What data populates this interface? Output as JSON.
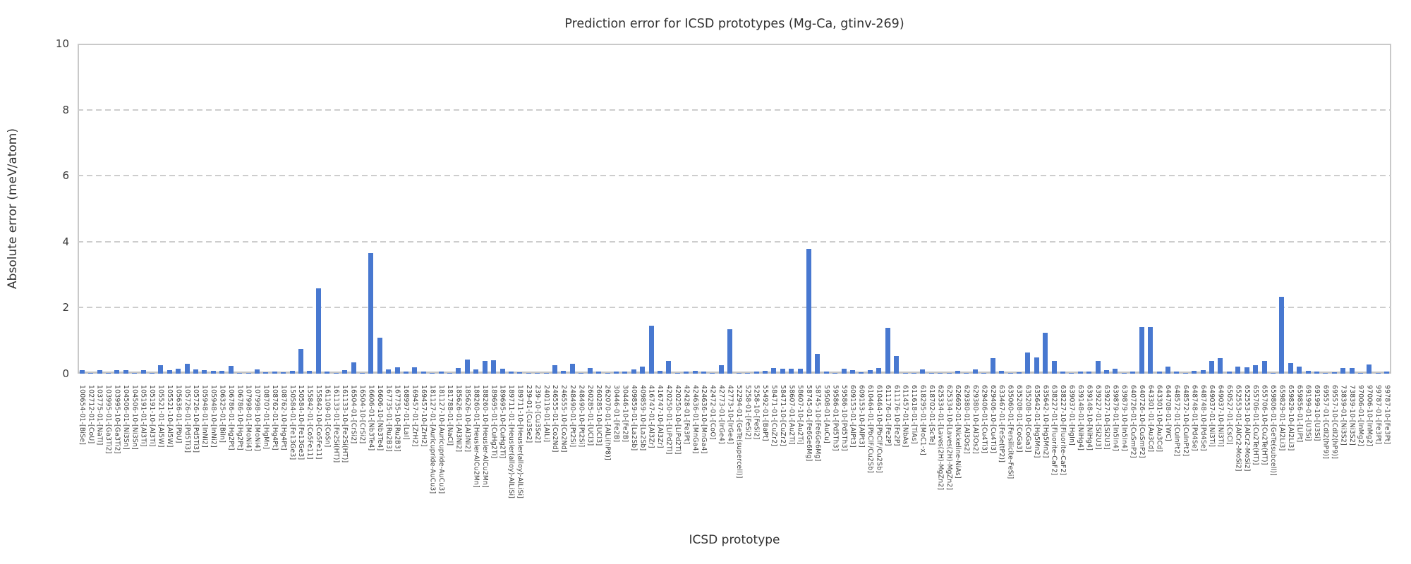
{
  "title": "Prediction error for ICSD prototypes (Mg-Ca, gtinv-269)",
  "colors": {
    "bar": "#4878D0",
    "grid": "#cdcdcd",
    "spine": "#c9c9c9",
    "text": "#333333"
  },
  "chart_data": {
    "type": "bar",
    "title": "Prediction error for ICSD prototypes (Mg-Ca, gtinv-269)",
    "xlabel": "ICSD prototype",
    "ylabel": "Absolute error (meV/atom)",
    "ylim": [
      0,
      10
    ],
    "yticks": [
      0,
      2,
      4,
      6,
      8,
      10
    ],
    "grid": "horizontal-dashed",
    "legend": "none",
    "bar_color": "#4878D0",
    "categories": [
      "100654-01-[BiSe]",
      "102712-01-[CoU]",
      "103775-01-[NaTl]",
      "103995-01-[Ga3Ti2]",
      "103995-10-[Ga3Ti2]",
      "104506-01-[Ni3Sn]",
      "104506-10-[Ni3Sn]",
      "105191-01-[Al3Ti]",
      "105191-10-[Al3Ti]",
      "105521-01-[Al5W]",
      "105521-10-[Al5W]",
      "105636-01-[PbU]",
      "105726-01-[Pd5Ti3]",
      "105726-10-[Pd5Ti3]",
      "105948-01-[InNi2]",
      "105948-10-[InNi2]",
      "106325-01-[BiIn]",
      "106786-01-[Hg2Pt]",
      "106786-10-[Hg2Pt]",
      "107998-01-[MoNi4]",
      "107998-10-[MoNi4]",
      "108707-01-[HgMn]",
      "108762-01-[Hg4Pt]",
      "108762-10-[Hg4Pt]",
      "150584-01-[Fe13Ge3]",
      "150584-10-[Fe13Ge3]",
      "155842-01-[Co5Fe11]",
      "155842-10-[Co5Fe11]",
      "161109-01-[CoSn]",
      "161133-01-[Fe2Si(HT)]",
      "161133-10-[Fe2Si(HT)]",
      "16504-01-[CrSi2]",
      "16504-10-[CrSi2]",
      "16606-01-[Nb3Te4]",
      "16606-10-[Nb3Te4]",
      "167735-01-[Ru2B3]",
      "167735-10-[Ru2B3]",
      "168997-01-[LaI]",
      "169457-01-[ZrH2]",
      "169457-10-[ZrH2]",
      "181127-01-[Auricupride-AuCu3]",
      "181127-10-[Auricupride-AuCu3]",
      "181788-01-[NaCl]",
      "185626-01-[Al3Ni2]",
      "185626-10-[Al3Ni2]",
      "188260-01-[Heusler-AlCu2Mn]",
      "188260-10-[Heusler-AlCu2Mn]",
      "189695-01-[CuHg2Ti]",
      "189695-10-[CuHg2Ti]",
      "189711-01-[Heusler(alloy)-AlLiSi]",
      "189711-10-[Heusler(alloy)-AlLiSi]",
      "239-01-[Cu3Se2]",
      "239-10-[Cu3Se2]",
      "240119-01-[AlLi]",
      "246555-01-[Co2Nd]",
      "246555-10-[Co2Nd]",
      "248490-01-[Pt2Si]",
      "248490-10-[Pt2Si]",
      "260285-01-[UCl3]",
      "260285-10-[UCl3]",
      "262070-01-[AlLi(hP8)]",
      "30446-01-[Fe2B]",
      "30446-10-[Fe2B]",
      "409859-01-[La2Sb]",
      "409859-10-[La2Sb]",
      "416747-01-[Al3Zr]",
      "416747-10-[Al3Zr]",
      "420250-01-[LiPd2Tl]",
      "420250-10-[LiPd2Tl]",
      "42428-01-[Fe3Pt]",
      "424636-01-[MnGa4]",
      "424636-10-[MnGa4]",
      "42472-01-[CoO]",
      "42773-01-[IrGe4]",
      "42773-10-[IrGe4]",
      "52294-01-[GeTe(supercell)]",
      "5258-01-[FeSi2]",
      "5258-10-[FeSi2]",
      "55492-01-[BaPt]",
      "58471-01-[CuZr2]",
      "58471-10-[CuZr2]",
      "58607-01-[Au2Ti]",
      "58607-10-[Au2Ti]",
      "58745-01-[Fe6Ge6Mg]",
      "58745-10-[Fe6Ge6Mg]",
      "59508-01-[AuCu]",
      "59586-01-[Pd5Th3]",
      "59586-10-[Pd5Th3]",
      "609153-01-[AlPt3]",
      "609153-10-[AlPt3]",
      "610464-01-[PbClF/Cu2Sb]",
      "610464-10-[PbClF/Cu2Sb]",
      "611176-01-[Fe2P]",
      "611176-10-[Fe2P]",
      "611457-01-[NbAs]",
      "611618-01-[TiAs]",
      "618295-01-[MoC1-x]",
      "618702-01-[ScTe]",
      "625334-01-[Laves(2H)-MgZn2]",
      "625334-10-[Laves(2H)-MgZn2]",
      "626692-01-[Nickeline-NiAs]",
      "629380-01-[Al3Os2]",
      "629380-10-[Al3Os2]",
      "629406-01-[Cu4Ti3]",
      "629406-10-[Cu4Ti3]",
      "633467-01-[FeSe(tP2)]",
      "635060-01-[Fersilicite-FeSi]",
      "635208-01-[CoGa3]",
      "635208-10-[CoGa3]",
      "635642-01-[Hg5Mn2]",
      "635642-10-[Hg5Mn2]",
      "638227-01-[Fluorite-CaF2]",
      "638227-10-[Fluorite-CaF2]",
      "639037-01-[HgIn]",
      "639148-01-[NiHg4]",
      "639148-10-[NiHg4]",
      "639227-01-[Si2U3]",
      "639227-10-[Si2U3]",
      "639879-01-[In5In4]",
      "639879-10-[In5In4]",
      "640726-01-[CuSmP2]",
      "640726-10-[CuSmP2]",
      "643301-01-[Au3Cd]",
      "643301-10-[Au3Cd]",
      "644708-01-[WC]",
      "648572-01-[CuInPt2]",
      "648572-10-[CuInPt2]",
      "648748-01-[Pd4Se]",
      "648748-10-[Pd4Se]",
      "649037-01-[Ni3Ti]",
      "649037-10-[Ni3Ti]",
      "650527-01-[CsCl]",
      "652553-01-[AlCr2-MoSi2]",
      "652553-10-[AlCr2-MoSi2]",
      "655706-01-[Cu2Te(HT)]",
      "655706-10-[Cu2Te(HT)]",
      "659806-01-[GeTe(subcell)]",
      "659829-01-[Al2Li3]",
      "659829-10-[Al2Li3]",
      "659856-01-[LiPt]",
      "69199-01-[U3Si]",
      "69199-10-[U3Si]",
      "69557-01-[CdI2(hP9)]",
      "69557-10-[CdI2(hP9)]",
      "73839-01-[Ni3S2]",
      "73839-10-[Ni3S2]",
      "97006-01-[InMg2]",
      "97006-10-[InMg2]",
      "99787-01-[Fe3Pt]",
      "99787-10-[Fe3Pt]"
    ],
    "values": [
      0.11,
      0.03,
      0.11,
      0.01,
      0.11,
      0.1,
      0.01,
      0.11,
      0.01,
      0.25,
      0.1,
      0.14,
      0.3,
      0.12,
      0.11,
      0.09,
      0.09,
      0.24,
      0.01,
      0.01,
      0.13,
      0.05,
      0.06,
      0.04,
      0.09,
      0.75,
      0.09,
      2.58,
      0.06,
      0.01,
      0.11,
      0.34,
      0.01,
      3.66,
      1.08,
      0.13,
      0.2,
      0.07,
      0.2,
      0.06,
      0.01,
      0.06,
      0.01,
      0.18,
      0.43,
      0.13,
      0.39,
      0.4,
      0.14,
      0.06,
      0.04,
      0.01,
      0.01,
      0.01,
      0.25,
      0.09,
      0.3,
      0.01,
      0.18,
      0.07,
      0.01,
      0.06,
      0.06,
      0.13,
      0.21,
      1.45,
      0.09,
      0.38,
      0.01,
      0.07,
      0.08,
      0.06,
      0.01,
      0.26,
      1.34,
      0.01,
      0.01,
      0.06,
      0.08,
      0.18,
      0.16,
      0.16,
      0.16,
      3.78,
      0.6,
      0.07,
      0.01,
      0.16,
      0.1,
      0.04,
      0.1,
      0.17,
      1.38,
      0.53,
      0.01,
      0.01,
      0.13,
      0.01,
      0.01,
      0.01,
      0.08,
      0.01,
      0.13,
      0.01,
      0.46,
      0.08,
      0.01,
      0.04,
      0.64,
      0.49,
      1.24,
      0.39,
      0.07,
      0.01,
      0.07,
      0.06,
      0.39,
      0.11,
      0.16,
      0.03,
      0.07,
      1.41,
      1.41,
      0.07,
      0.21,
      0.07,
      0.01,
      0.08,
      0.11,
      0.39,
      0.46,
      0.07,
      0.21,
      0.2,
      0.25,
      0.39,
      0.01,
      2.33,
      0.32,
      0.21,
      0.08,
      0.06,
      0.01,
      0.04,
      0.18,
      0.18,
      0.01,
      0.27,
      0.01,
      0.07
    ]
  }
}
